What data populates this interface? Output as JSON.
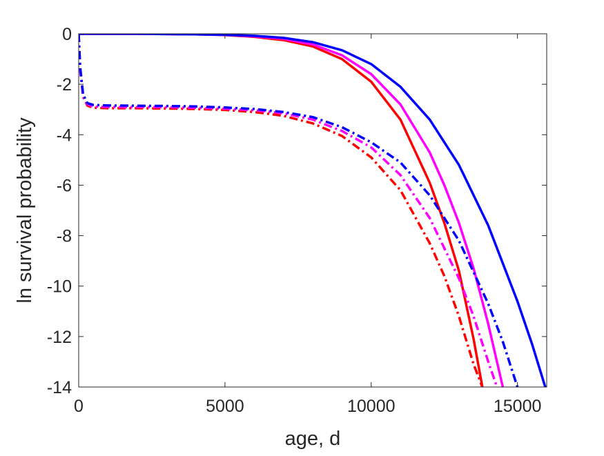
{
  "chart_data": {
    "type": "line",
    "title": "",
    "xlabel": "age, d",
    "ylabel": "ln survival probability",
    "xlim": [
      0,
      16000
    ],
    "ylim": [
      -14,
      0
    ],
    "xticks": [
      0,
      5000,
      10000,
      15000
    ],
    "xtick_labels": [
      "0",
      "5000",
      "10000",
      "15000"
    ],
    "yticks": [
      0,
      -2,
      -4,
      -6,
      -8,
      -10,
      -12,
      -14
    ],
    "ytick_labels": [
      "0",
      "-2",
      "-4",
      "-6",
      "-8",
      "-10",
      "-12",
      "-14"
    ],
    "grid": false,
    "legend": "none",
    "series": [
      {
        "color": "#ff0000",
        "style": "solid",
        "x": [
          0,
          2000,
          4000,
          5000,
          6000,
          7000,
          8000,
          9000,
          10000,
          11000,
          12000,
          12500,
          13000,
          13500,
          13800
        ],
        "y": [
          0,
          0,
          -0.02,
          -0.05,
          -0.12,
          -0.25,
          -0.5,
          -1.0,
          -1.9,
          -3.4,
          -5.9,
          -7.5,
          -9.4,
          -12.1,
          -14
        ]
      },
      {
        "color": "#ff00ff",
        "style": "solid",
        "x": [
          0,
          2000,
          4000,
          5000,
          6000,
          7000,
          8000,
          9000,
          10000,
          11000,
          12000,
          12500,
          13000,
          13500,
          14000,
          14500
        ],
        "y": [
          0,
          0,
          -0.02,
          -0.04,
          -0.1,
          -0.2,
          -0.42,
          -0.85,
          -1.6,
          -2.8,
          -4.7,
          -6.0,
          -7.5,
          -9.3,
          -11.5,
          -14
        ]
      },
      {
        "color": "#0000ff",
        "style": "solid",
        "x": [
          0,
          2000,
          4000,
          5000,
          6000,
          7000,
          8000,
          9000,
          10000,
          11000,
          12000,
          13000,
          14000,
          15000,
          15500,
          15950
        ],
        "y": [
          0,
          0,
          -0.02,
          -0.04,
          -0.08,
          -0.16,
          -0.33,
          -0.65,
          -1.2,
          -2.1,
          -3.4,
          -5.2,
          -7.6,
          -10.6,
          -12.3,
          -14
        ]
      },
      {
        "color": "#ff0000",
        "style": "dashdot",
        "x": [
          0,
          50,
          150,
          300,
          500,
          1000,
          2000,
          3000,
          4000,
          5000,
          6000,
          7000,
          8000,
          9000,
          10000,
          11000,
          12000,
          12500,
          13000,
          13500,
          13800
        ],
        "y": [
          0,
          -1.4,
          -2.5,
          -2.85,
          -2.93,
          -2.95,
          -2.95,
          -2.96,
          -2.98,
          -3.02,
          -3.1,
          -3.25,
          -3.55,
          -4.05,
          -4.9,
          -6.2,
          -8.3,
          -9.6,
          -11.2,
          -13.1,
          -14
        ]
      },
      {
        "color": "#ff00ff",
        "style": "dashdot",
        "x": [
          0,
          50,
          150,
          300,
          500,
          1000,
          2000,
          3000,
          4000,
          5000,
          6000,
          7000,
          8000,
          9000,
          10000,
          11000,
          12000,
          13000,
          13500,
          14000,
          14300
        ],
        "y": [
          0,
          -1.4,
          -2.45,
          -2.8,
          -2.88,
          -2.9,
          -2.9,
          -2.91,
          -2.93,
          -2.97,
          -3.03,
          -3.15,
          -3.4,
          -3.85,
          -4.5,
          -5.6,
          -7.3,
          -9.7,
          -11.2,
          -13.0,
          -14
        ]
      },
      {
        "color": "#0000ff",
        "style": "dashdot",
        "x": [
          0,
          50,
          150,
          300,
          500,
          1000,
          2000,
          3000,
          4000,
          5000,
          6000,
          7000,
          8000,
          9000,
          10000,
          11000,
          12000,
          13000,
          14000,
          14500,
          15000
        ],
        "y": [
          0,
          -1.3,
          -2.4,
          -2.75,
          -2.82,
          -2.84,
          -2.85,
          -2.86,
          -2.88,
          -2.92,
          -2.98,
          -3.1,
          -3.3,
          -3.7,
          -4.3,
          -5.1,
          -6.4,
          -8.2,
          -10.7,
          -12.2,
          -14
        ]
      }
    ]
  }
}
